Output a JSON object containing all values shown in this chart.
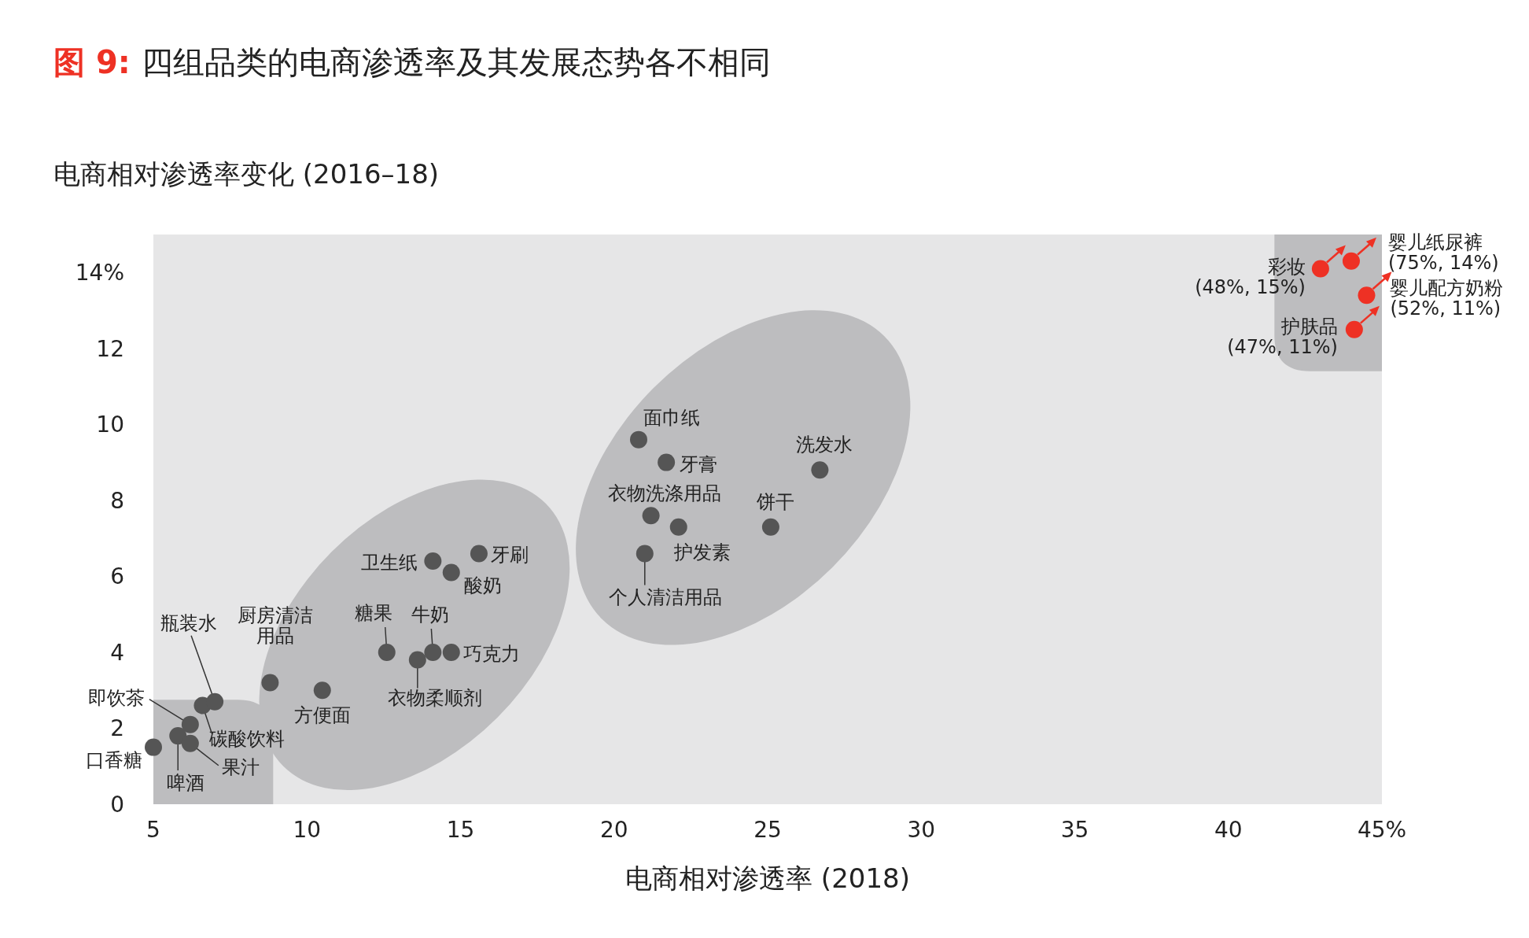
{
  "chart_data": {
    "type": "scatter",
    "title": "图 9:",
    "subtitle": "四组品类的电商渗透率及其发展态势各不相同",
    "ylabel": "电商相对渗透率变化 (2016–18)",
    "xlabel": "电商相对渗透率 (2018)",
    "xlim": [
      5,
      45
    ],
    "ylim": [
      0,
      15
    ],
    "xticks": [
      5,
      10,
      15,
      20,
      25,
      30,
      35,
      40,
      {
        "value": 45,
        "label": "45%"
      }
    ],
    "yticks": [
      0,
      2,
      4,
      6,
      8,
      10,
      12,
      {
        "value": 14,
        "label": "14%"
      }
    ],
    "grid": false,
    "marker": "circle",
    "series": [
      {
        "color": "#555555",
        "x": [
          5.0,
          5.8,
          6.2,
          6.2,
          6.6,
          7.0,
          8.8,
          10.5,
          12.6,
          13.6,
          14.1,
          14.7,
          14.1,
          14.7,
          15.6,
          20.8,
          21.7,
          21.2,
          22.1,
          21.0,
          25.1,
          26.7
        ],
        "values": [
          1.5,
          1.8,
          1.6,
          2.1,
          2.6,
          2.7,
          3.2,
          3.0,
          4.0,
          3.8,
          4.0,
          4.0,
          6.4,
          6.1,
          6.6,
          9.6,
          9.0,
          7.6,
          7.3,
          6.6,
          7.3,
          8.8
        ]
      },
      {
        "color": "#ee3124",
        "x": [
          43.0,
          44.0,
          44.5,
          44.1
        ],
        "values": [
          14.1,
          14.3,
          13.4,
          12.5
        ]
      }
    ],
    "annotations": [
      {
        "text": "口香糖",
        "x": 5.0,
        "y": 1.5
      },
      {
        "text": "啤酒",
        "x": 5.8,
        "y": 1.8
      },
      {
        "text": "果汁",
        "x": 6.2,
        "y": 1.6
      },
      {
        "text": "即饮茶",
        "x": 6.2,
        "y": 2.1
      },
      {
        "text": "碳酸饮料",
        "x": 6.6,
        "y": 2.6
      },
      {
        "text": "瓶装水",
        "x": 7.0,
        "y": 2.7
      },
      {
        "text": "厨房清洁用品",
        "x": 8.8,
        "y": 3.2
      },
      {
        "text": "方便面",
        "x": 10.5,
        "y": 3.0
      },
      {
        "text": "糖果",
        "x": 12.6,
        "y": 4.0
      },
      {
        "text": "衣物柔顺剂",
        "x": 13.6,
        "y": 3.8
      },
      {
        "text": "牛奶",
        "x": 14.1,
        "y": 4.0
      },
      {
        "text": "巧克力",
        "x": 14.7,
        "y": 4.0
      },
      {
        "text": "卫生纸",
        "x": 14.1,
        "y": 6.4
      },
      {
        "text": "酸奶",
        "x": 14.7,
        "y": 6.1
      },
      {
        "text": "牙刷",
        "x": 15.6,
        "y": 6.6
      },
      {
        "text": "面巾纸",
        "x": 20.8,
        "y": 9.6
      },
      {
        "text": "牙膏",
        "x": 21.7,
        "y": 9.0
      },
      {
        "text": "衣物洗涤用品",
        "x": 21.2,
        "y": 7.6
      },
      {
        "text": "护发素",
        "x": 22.1,
        "y": 7.3
      },
      {
        "text": "个人清洁用品",
        "x": 21.0,
        "y": 6.6
      },
      {
        "text": "饼干",
        "x": 25.1,
        "y": 7.3
      },
      {
        "text": "洗发水",
        "x": 26.7,
        "y": 8.8
      },
      {
        "text": "彩妆\n(48%, 15%)",
        "x": 43.0,
        "y": 14.1
      },
      {
        "text": "婴儿纸尿裤\n(75%, 14%)",
        "x": 44.0,
        "y": 14.3
      },
      {
        "text": "婴儿配方奶粉\n(52%, 11%)",
        "x": 44.5,
        "y": 13.4
      },
      {
        "text": "护肤品\n(47%, 11%)",
        "x": 44.1,
        "y": 12.5
      }
    ]
  }
}
